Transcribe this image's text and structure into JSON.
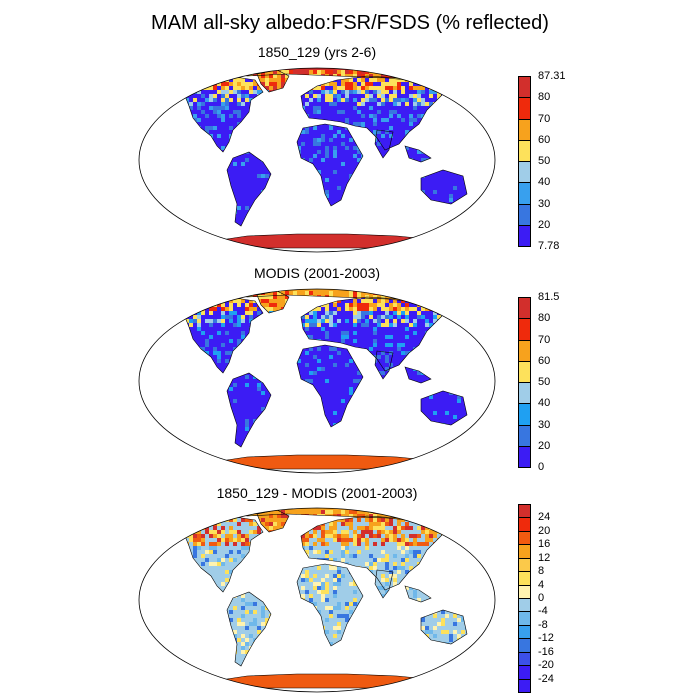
{
  "title": "MAM all-sky albedo:FSR/FSDS (% reflected)",
  "colors": {
    "bg": "#ffffff",
    "land_low": "#3c1cf4",
    "land_mid": "#3876e0",
    "land_light": "#a0cde8",
    "yellow": "#fde15b",
    "orange": "#f7a21d",
    "red_orange": "#ef5a11",
    "red": "#d22f2c"
  },
  "panels": [
    {
      "title": "1850_129 (yrs 2-6)",
      "colorbar": {
        "labels": [
          "87.31",
          "80",
          "70",
          "60",
          "50",
          "40",
          "30",
          "20",
          "7.78"
        ],
        "colors": [
          "#d22f2c",
          "#ef2a0c",
          "#f7a21d",
          "#fde15b",
          "#a0cde8",
          "#38a0ee",
          "#3876e0",
          "#3c1cf4"
        ]
      }
    },
    {
      "title": "MODIS (2001-2003)",
      "colorbar": {
        "labels": [
          "81.5",
          "80",
          "70",
          "60",
          "50",
          "40",
          "30",
          "20",
          "0"
        ],
        "colors": [
          "#d22f2c",
          "#ef2a0c",
          "#f7a21d",
          "#fde15b",
          "#a0cde8",
          "#1fa0f2",
          "#3876e0",
          "#3c1cf4"
        ]
      }
    },
    {
      "title": "1850_129 - MODIS (2001-2003)",
      "colorbar": {
        "labels": [
          "24",
          "20",
          "16",
          "12",
          "8",
          "4",
          "0",
          "-4",
          "-8",
          "-12",
          "-16",
          "-20",
          "-24"
        ],
        "colors": [
          "#d22f2c",
          "#ef2a0c",
          "#f25a10",
          "#f7a21d",
          "#fbc94a",
          "#fde15b",
          "#fff3b0",
          "#a0cde8",
          "#6fb8ea",
          "#38a0ee",
          "#3876e0",
          "#3c50e8",
          "#3c1cf4",
          "#3c1cf4"
        ]
      }
    }
  ]
}
